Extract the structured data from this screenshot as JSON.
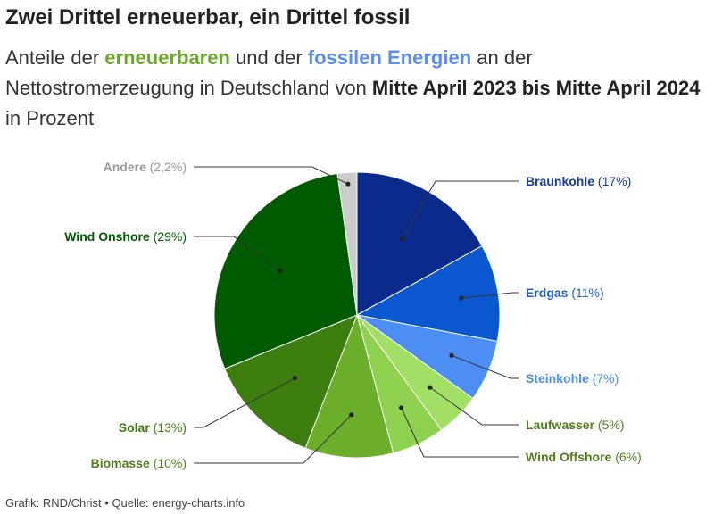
{
  "header": {
    "title": "Zwei Drittel erneuerbar, ein Drittel fossil",
    "subtitle": {
      "part1": "Anteile der ",
      "renewable": "erneuerbaren",
      "part2": " und der ",
      "fossil": "fossilen Energien",
      "part3": " an der Nettostromerzeugung in Deutschland von ",
      "period": "Mitte April 2023 bis Mitte April 2024",
      "part4": " in Prozent"
    }
  },
  "footer": {
    "credit": "Grafik: RND/Christ",
    "separator": "•",
    "source": "Quelle: energy-charts.info"
  },
  "chart_data": {
    "type": "pie",
    "slices": [
      {
        "name": "Braunkohle",
        "pct_label": "(17%)",
        "value": 17,
        "color": "#0a2a8c",
        "label_color": "#1a3a9c"
      },
      {
        "name": "Erdgas",
        "pct_label": "(11%)",
        "value": 11,
        "color": "#0b57d0",
        "label_color": "#1f5fd0"
      },
      {
        "name": "Steinkohle",
        "pct_label": "(7%)",
        "value": 7,
        "color": "#4d8ef5",
        "label_color": "#4d8ef5"
      },
      {
        "name": "Laufwasser",
        "pct_label": "(5%)",
        "value": 5,
        "color": "#a2e065",
        "label_color": "#4f7f1a"
      },
      {
        "name": "Wind Offshore",
        "pct_label": "(6%)",
        "value": 6,
        "color": "#8ed24f",
        "label_color": "#4f7f1a"
      },
      {
        "name": "Biomasse",
        "pct_label": "(10%)",
        "value": 10,
        "color": "#6bae2a",
        "label_color": "#4f7f1a"
      },
      {
        "name": "Solar",
        "pct_label": "(13%)",
        "value": 13,
        "color": "#3d7f0e",
        "label_color": "#3d7f0e"
      },
      {
        "name": "Wind Onshore",
        "pct_label": "(29%)",
        "value": 29,
        "color": "#005a00",
        "label_color": "#005a00"
      },
      {
        "name": "Andere",
        "pct_label": "(2,2%)",
        "value": 2.2,
        "color": "#cccccc",
        "label_color": "#999999"
      }
    ]
  }
}
